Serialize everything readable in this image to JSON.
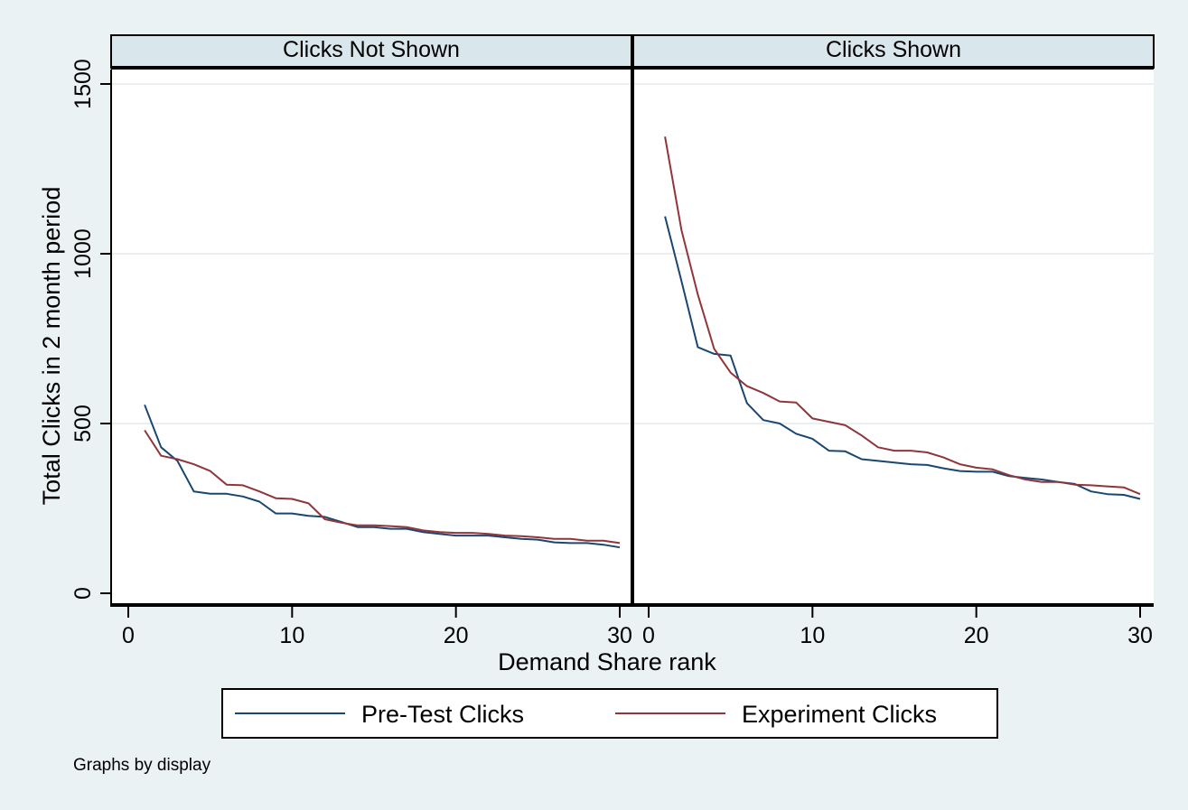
{
  "chart_data": {
    "type": "line",
    "panels": [
      {
        "title": "Clicks Not Shown",
        "series": [
          {
            "name": "Pre-Test Clicks",
            "color": "#1a476f",
            "x": [
              1,
              2,
              3,
              4,
              5,
              6,
              7,
              8,
              9,
              10,
              11,
              12,
              13,
              14,
              15,
              16,
              17,
              18,
              19,
              20,
              21,
              22,
              23,
              24,
              25,
              26,
              27,
              28,
              29,
              30
            ],
            "y": [
              555,
              430,
              390,
              300,
              293,
              293,
              285,
              270,
              235,
              235,
              228,
              225,
              210,
              195,
              195,
              190,
              190,
              180,
              175,
              170,
              170,
              170,
              165,
              160,
              158,
              150,
              148,
              148,
              143,
              135
            ]
          },
          {
            "name": "Experiment Clicks",
            "color": "#90353b",
            "x": [
              1,
              2,
              3,
              4,
              5,
              6,
              7,
              8,
              9,
              10,
              11,
              12,
              13,
              14,
              15,
              16,
              17,
              18,
              19,
              20,
              21,
              22,
              23,
              24,
              25,
              26,
              27,
              28,
              29,
              30
            ],
            "y": [
              480,
              405,
              395,
              380,
              360,
              320,
              318,
              300,
              280,
              278,
              265,
              218,
              208,
              200,
              200,
              198,
              195,
              185,
              180,
              178,
              178,
              175,
              170,
              168,
              165,
              160,
              160,
              155,
              155,
              148
            ]
          }
        ]
      },
      {
        "title": "Clicks Shown",
        "series": [
          {
            "name": "Pre-Test Clicks",
            "color": "#1a476f",
            "x": [
              1,
              2,
              3,
              4,
              5,
              6,
              7,
              8,
              9,
              10,
              11,
              12,
              13,
              14,
              15,
              16,
              17,
              18,
              19,
              20,
              21,
              22,
              23,
              24,
              25,
              26,
              27,
              28,
              29,
              30
            ],
            "y": [
              1110,
              920,
              725,
              705,
              700,
              560,
              510,
              500,
              470,
              455,
              420,
              418,
              395,
              390,
              385,
              380,
              378,
              368,
              360,
              358,
              358,
              345,
              340,
              335,
              328,
              322,
              300,
              292,
              290,
              278
            ]
          },
          {
            "name": "Experiment Clicks",
            "color": "#90353b",
            "x": [
              1,
              2,
              3,
              4,
              5,
              6,
              7,
              8,
              9,
              10,
              11,
              12,
              13,
              14,
              15,
              16,
              17,
              18,
              19,
              20,
              21,
              22,
              23,
              24,
              25,
              26,
              27,
              28,
              29,
              30
            ],
            "y": [
              1345,
              1070,
              880,
              720,
              650,
              610,
              590,
              565,
              562,
              515,
              505,
              495,
              465,
              430,
              420,
              420,
              415,
              400,
              380,
              370,
              365,
              348,
              335,
              328,
              328,
              320,
              318,
              315,
              312,
              292
            ]
          }
        ]
      }
    ],
    "xlabel": "Demand Share rank",
    "ylabel": "Total Clicks in 2 month period",
    "xlim": [
      0,
      30
    ],
    "ylim": [
      0,
      1500
    ],
    "xticks": [
      0,
      10,
      20,
      30
    ],
    "yticks": [
      0,
      500,
      1000,
      1500
    ],
    "x_tick_labels": [
      "0",
      "10",
      "20",
      "30"
    ],
    "y_tick_labels": [
      "0",
      "500",
      "1000",
      "1500"
    ],
    "grid": true,
    "legend": {
      "placement": "bottom-center",
      "entries": [
        "Pre-Test Clicks",
        "Experiment Clicks"
      ]
    },
    "note": "Graphs by display"
  },
  "colors": {
    "background": "#eaf2f3",
    "plot_area": "#ffffff",
    "strip": "#d9e6eb",
    "grid": "#e4ecee",
    "axis": "#000000"
  }
}
